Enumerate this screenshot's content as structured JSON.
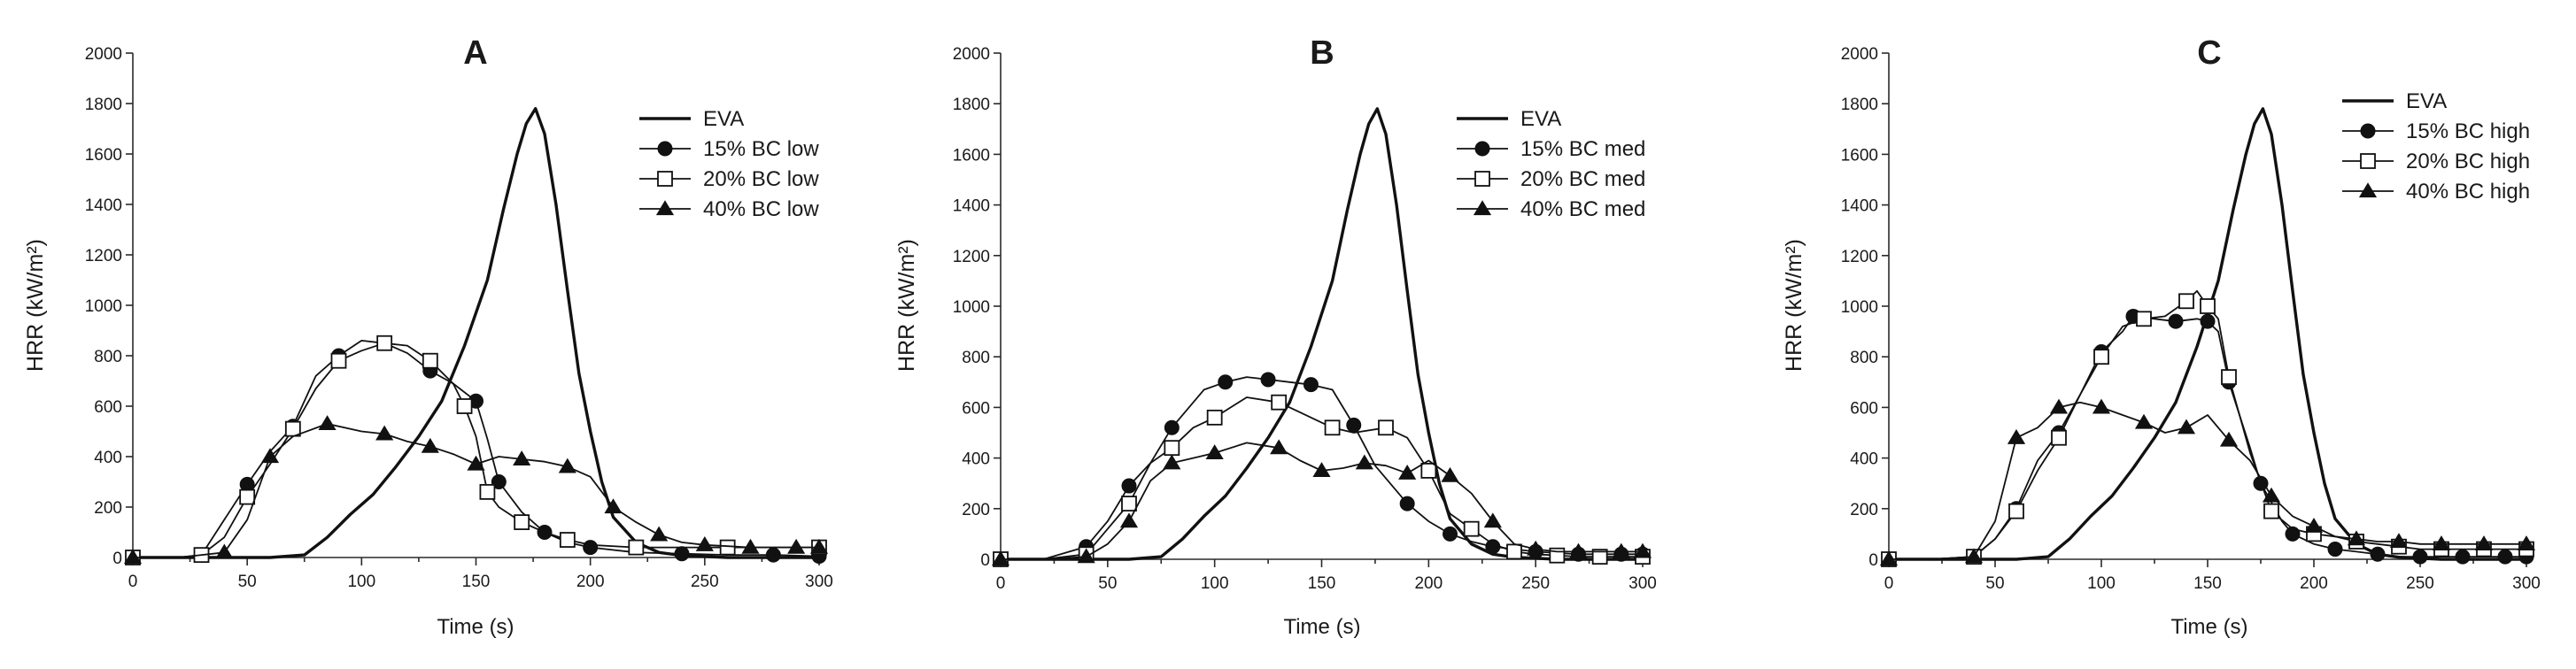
{
  "figure": {
    "background": "#ffffff",
    "line_color": "#111111"
  },
  "chart_data": [
    {
      "type": "line",
      "title": "A",
      "xlabel": "Time (s)",
      "ylabel": "HRR (kW/m²)",
      "xlim": [
        0,
        300
      ],
      "ylim": [
        0,
        2000
      ],
      "xticks": [
        0,
        50,
        100,
        150,
        200,
        250,
        300
      ],
      "yticks": [
        0,
        200,
        400,
        600,
        800,
        1000,
        1200,
        1400,
        1600,
        1800,
        2000
      ],
      "legend_position": "top-right",
      "series": [
        {
          "name": "EVA",
          "marker": "none",
          "width": 3.4,
          "x": [
            0,
            20,
            40,
            60,
            75,
            85,
            95,
            105,
            115,
            125,
            135,
            145,
            155,
            162,
            168,
            172,
            176,
            180,
            185,
            190,
            195,
            200,
            205,
            210,
            220,
            230,
            240,
            260,
            280,
            300
          ],
          "y": [
            0,
            0,
            0,
            0,
            10,
            80,
            170,
            250,
            360,
            480,
            620,
            840,
            1100,
            1380,
            1600,
            1720,
            1780,
            1680,
            1400,
            1060,
            730,
            500,
            300,
            160,
            60,
            20,
            8,
            0,
            0,
            0
          ]
        },
        {
          "name": "15% BC low",
          "marker": "circle",
          "x": [
            0,
            20,
            30,
            40,
            50,
            60,
            70,
            80,
            90,
            100,
            110,
            120,
            130,
            140,
            150,
            155,
            160,
            170,
            180,
            190,
            200,
            220,
            240,
            260,
            280,
            300
          ],
          "y": [
            0,
            0,
            10,
            150,
            290,
            420,
            520,
            720,
            800,
            860,
            850,
            810,
            740,
            690,
            620,
            470,
            300,
            180,
            100,
            60,
            40,
            20,
            15,
            10,
            10,
            5
          ]
        },
        {
          "name": "20% BC low",
          "marker": "square",
          "x": [
            0,
            20,
            30,
            40,
            50,
            60,
            70,
            80,
            90,
            100,
            110,
            120,
            130,
            140,
            145,
            150,
            155,
            160,
            170,
            180,
            190,
            200,
            220,
            240,
            260,
            280,
            300
          ],
          "y": [
            0,
            0,
            10,
            80,
            240,
            370,
            510,
            670,
            780,
            820,
            850,
            840,
            780,
            690,
            600,
            480,
            260,
            200,
            140,
            100,
            70,
            50,
            40,
            40,
            40,
            40,
            40
          ]
        },
        {
          "name": "40% BC low",
          "marker": "triangle",
          "x": [
            0,
            20,
            40,
            50,
            60,
            70,
            85,
            100,
            110,
            120,
            130,
            140,
            150,
            160,
            170,
            180,
            190,
            200,
            210,
            220,
            230,
            240,
            250,
            260,
            270,
            280,
            290,
            300
          ],
          "y": [
            0,
            0,
            20,
            150,
            400,
            480,
            530,
            500,
            490,
            460,
            440,
            410,
            370,
            400,
            390,
            380,
            360,
            320,
            200,
            140,
            90,
            60,
            50,
            45,
            40,
            40,
            40,
            40
          ]
        }
      ]
    },
    {
      "type": "line",
      "title": "B",
      "xlabel": "Time (s)",
      "ylabel": "HRR (kW/m²)",
      "xlim": [
        0,
        300
      ],
      "ylim": [
        0,
        2000
      ],
      "xticks": [
        0,
        50,
        100,
        150,
        200,
        250,
        300
      ],
      "yticks": [
        0,
        200,
        400,
        600,
        800,
        1000,
        1200,
        1400,
        1600,
        1800,
        2000
      ],
      "legend_position": "top-right",
      "series": [
        {
          "name": "EVA",
          "marker": "none",
          "width": 3.4,
          "x": [
            0,
            20,
            40,
            60,
            75,
            85,
            95,
            105,
            115,
            125,
            135,
            145,
            155,
            162,
            168,
            172,
            176,
            180,
            185,
            190,
            195,
            200,
            205,
            210,
            220,
            230,
            240,
            260,
            280,
            300
          ],
          "y": [
            0,
            0,
            0,
            0,
            10,
            80,
            170,
            250,
            360,
            480,
            620,
            840,
            1100,
            1380,
            1600,
            1720,
            1780,
            1680,
            1400,
            1060,
            730,
            500,
            300,
            160,
            60,
            20,
            8,
            0,
            0,
            0
          ]
        },
        {
          "name": "15% BC med",
          "marker": "circle",
          "x": [
            0,
            20,
            40,
            50,
            60,
            70,
            80,
            95,
            105,
            115,
            125,
            135,
            145,
            155,
            165,
            175,
            190,
            200,
            210,
            220,
            230,
            240,
            250,
            260,
            270,
            280,
            290,
            300
          ],
          "y": [
            0,
            0,
            50,
            150,
            290,
            380,
            520,
            670,
            700,
            720,
            710,
            700,
            690,
            670,
            530,
            370,
            220,
            150,
            100,
            70,
            50,
            40,
            30,
            25,
            20,
            20,
            20,
            20
          ]
        },
        {
          "name": "20% BC med",
          "marker": "square",
          "x": [
            0,
            20,
            40,
            50,
            60,
            70,
            80,
            90,
            100,
            115,
            130,
            140,
            155,
            165,
            180,
            190,
            200,
            210,
            220,
            230,
            240,
            250,
            260,
            270,
            280,
            290,
            300
          ],
          "y": [
            0,
            0,
            20,
            120,
            220,
            380,
            440,
            520,
            560,
            640,
            620,
            580,
            520,
            500,
            520,
            480,
            350,
            180,
            120,
            60,
            30,
            20,
            15,
            10,
            10,
            10,
            10
          ]
        },
        {
          "name": "40% BC med",
          "marker": "triangle",
          "x": [
            0,
            20,
            40,
            50,
            60,
            70,
            80,
            90,
            100,
            115,
            130,
            140,
            150,
            160,
            170,
            180,
            190,
            200,
            210,
            220,
            230,
            240,
            250,
            260,
            270,
            280,
            290,
            300
          ],
          "y": [
            0,
            0,
            10,
            60,
            150,
            310,
            380,
            400,
            420,
            460,
            440,
            390,
            350,
            360,
            380,
            370,
            340,
            390,
            330,
            260,
            150,
            60,
            40,
            30,
            30,
            30,
            30,
            30
          ]
        }
      ]
    },
    {
      "type": "line",
      "title": "C",
      "xlabel": "Time (s)",
      "ylabel": "HRR (kW/m²)",
      "xlim": [
        0,
        300
      ],
      "ylim": [
        0,
        2000
      ],
      "xticks": [
        0,
        50,
        100,
        150,
        200,
        250,
        300
      ],
      "yticks": [
        0,
        200,
        400,
        600,
        800,
        1000,
        1200,
        1400,
        1600,
        1800,
        2000
      ],
      "legend_position": "top-right",
      "series": [
        {
          "name": "EVA",
          "marker": "none",
          "width": 3.4,
          "x": [
            0,
            20,
            40,
            60,
            75,
            85,
            95,
            105,
            115,
            125,
            135,
            145,
            155,
            162,
            168,
            172,
            176,
            180,
            185,
            190,
            195,
            200,
            205,
            210,
            220,
            230,
            240,
            260,
            280,
            300
          ],
          "y": [
            0,
            0,
            0,
            0,
            10,
            80,
            170,
            250,
            360,
            480,
            620,
            840,
            1100,
            1380,
            1600,
            1720,
            1780,
            1680,
            1400,
            1060,
            730,
            500,
            300,
            160,
            60,
            20,
            8,
            0,
            0,
            0
          ]
        },
        {
          "name": "15% BC high",
          "marker": "circle",
          "x": [
            0,
            20,
            40,
            50,
            60,
            70,
            80,
            90,
            100,
            110,
            115,
            125,
            135,
            145,
            150,
            155,
            160,
            170,
            175,
            185,
            190,
            200,
            210,
            220,
            230,
            240,
            250,
            260,
            270,
            280,
            290,
            300
          ],
          "y": [
            0,
            0,
            10,
            80,
            200,
            390,
            500,
            650,
            820,
            900,
            960,
            950,
            940,
            950,
            940,
            900,
            700,
            440,
            300,
            150,
            100,
            60,
            40,
            30,
            20,
            10,
            10,
            10,
            10,
            10,
            10,
            10
          ]
        },
        {
          "name": "20% BC high",
          "marker": "square",
          "x": [
            0,
            20,
            40,
            50,
            60,
            70,
            80,
            90,
            100,
            110,
            120,
            130,
            140,
            145,
            150,
            155,
            160,
            170,
            180,
            190,
            200,
            210,
            220,
            230,
            240,
            250,
            260,
            270,
            280,
            290,
            300
          ],
          "y": [
            0,
            0,
            10,
            80,
            190,
            350,
            480,
            650,
            800,
            920,
            950,
            960,
            1020,
            1060,
            1000,
            950,
            720,
            420,
            190,
            120,
            100,
            90,
            70,
            60,
            50,
            40,
            40,
            40,
            40,
            40,
            40
          ]
        },
        {
          "name": "40% BC high",
          "marker": "triangle",
          "x": [
            0,
            20,
            40,
            50,
            60,
            70,
            80,
            90,
            100,
            110,
            120,
            130,
            140,
            150,
            160,
            170,
            180,
            190,
            200,
            210,
            220,
            230,
            240,
            250,
            260,
            270,
            280,
            290,
            300
          ],
          "y": [
            0,
            0,
            10,
            150,
            480,
            520,
            600,
            620,
            600,
            570,
            540,
            500,
            520,
            570,
            470,
            390,
            250,
            170,
            130,
            90,
            80,
            70,
            70,
            60,
            60,
            60,
            60,
            60,
            60
          ]
        }
      ]
    }
  ]
}
